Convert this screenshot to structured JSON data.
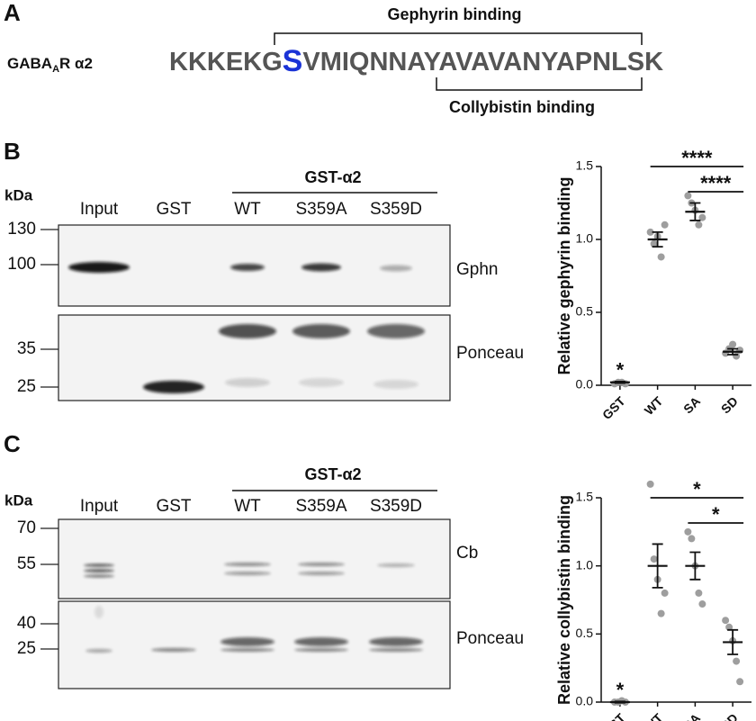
{
  "panel_a": {
    "label": "A",
    "construct_main": "GABA",
    "construct_sub": "A",
    "construct_rest": "R α2",
    "sequence_before": "KKKEKG",
    "sequence_highlight": "S",
    "sequence_after": "VMIQNNAYAVAVANYAPNLSK",
    "top_bracket": "Gephyrin binding",
    "bottom_bracket": "Collybistin binding"
  },
  "panel_b": {
    "label": "B",
    "kda": "kDa",
    "group": "GST-α2",
    "lanes": [
      "Input",
      "GST",
      "WT",
      "S359A",
      "S359D"
    ],
    "top_markers": [
      130,
      100
    ],
    "bottom_markers": [
      35,
      25
    ],
    "top_blot": "Gphn",
    "bottom_blot": "Ponceau"
  },
  "panel_c": {
    "label": "C",
    "kda": "kDa",
    "group": "GST-α2",
    "lanes": [
      "Input",
      "GST",
      "WT",
      "S359A",
      "S359D"
    ],
    "top_markers": [
      70,
      55
    ],
    "bottom_markers": [
      40,
      25
    ],
    "top_blot": "Cb",
    "bottom_blot": "Ponceau"
  },
  "chart_data": [
    {
      "type": "dot",
      "y_label": "Relative gephyrin binding",
      "categories": [
        "GST",
        "WT",
        "SA",
        "SD"
      ],
      "points": [
        [
          0.01,
          0.02,
          0.02,
          0.01
        ],
        [
          1.05,
          0.97,
          1.02,
          0.88,
          1.1
        ],
        [
          1.3,
          1.25,
          1.2,
          1.1,
          1.15
        ],
        [
          0.22,
          0.25,
          0.28,
          0.2,
          0.24
        ]
      ],
      "means": [
        0.02,
        1.0,
        1.19,
        0.23
      ],
      "sems": [
        0.005,
        0.05,
        0.06,
        0.02
      ],
      "point_color": "#9e9e9e",
      "mean_color": "#111111",
      "ylim": [
        0,
        1.5
      ],
      "yticks": [
        {
          "value": 0,
          "label": "0.0"
        },
        {
          "value": 0.5,
          "label": "0.5"
        },
        {
          "value": 1,
          "label": "1.0"
        },
        {
          "value": 1.5,
          "label": "1.5"
        }
      ],
      "annotations": [
        {
          "category": "GST",
          "label": "*"
        }
      ],
      "significance": [
        {
          "from": "WT",
          "to": "SD",
          "label": "****"
        },
        {
          "from": "SA",
          "to": "SD",
          "label": "****"
        }
      ]
    },
    {
      "type": "dot",
      "y_label": "Relative collybistin binding",
      "categories": [
        "GST",
        "WT",
        "SA",
        "SD"
      ],
      "points": [
        [
          0.0,
          0.0,
          0.01,
          0.0
        ],
        [
          1.6,
          1.05,
          0.9,
          0.65,
          0.8
        ],
        [
          1.25,
          1.2,
          1.0,
          0.8,
          0.72
        ],
        [
          0.6,
          0.55,
          0.45,
          0.3,
          0.15
        ]
      ],
      "means": [
        0.0,
        1.0,
        1.0,
        0.44
      ],
      "sems": [
        0.005,
        0.16,
        0.1,
        0.09
      ],
      "point_color": "#9e9e9e",
      "mean_color": "#111111",
      "ylim": [
        0,
        1.5
      ],
      "yticks": [
        {
          "value": 0,
          "label": "0.0"
        },
        {
          "value": 0.5,
          "label": "0.5"
        },
        {
          "value": 1,
          "label": "1.0"
        },
        {
          "value": 1.5,
          "label": "1.5"
        }
      ],
      "annotations": [
        {
          "category": "GST",
          "label": "*"
        }
      ],
      "significance": [
        {
          "from": "WT",
          "to": "SD",
          "label": "*"
        },
        {
          "from": "SA",
          "to": "SD",
          "label": "*"
        }
      ]
    }
  ]
}
